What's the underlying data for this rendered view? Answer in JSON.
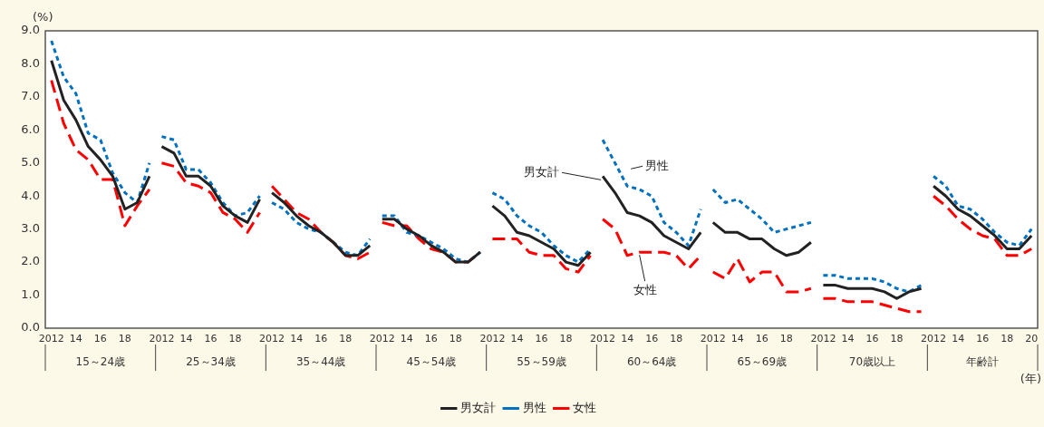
{
  "chart_data": {
    "type": "line",
    "ylabel": "(%)",
    "xlabel": "(年)",
    "categories": [
      "2012",
      null,
      "14",
      null,
      "16",
      null,
      "18",
      null,
      null,
      "2012",
      null,
      "14",
      null,
      "16",
      null,
      "18",
      null,
      null,
      "2012",
      null,
      "14",
      null,
      "16",
      null,
      "18",
      null,
      null,
      "2012",
      null,
      "14",
      null,
      "16",
      null,
      "18",
      null,
      null,
      "2012",
      null,
      "14",
      null,
      "16",
      null,
      "18",
      null,
      null,
      "2012",
      null,
      "14",
      null,
      "16",
      null,
      "18",
      null,
      null,
      "2012",
      null,
      "14",
      null,
      "16",
      null,
      "18",
      null,
      null,
      "2012",
      null,
      "14",
      null,
      "16",
      null,
      "18",
      null,
      null,
      "2012",
      null,
      "14",
      null,
      "16",
      null,
      "18",
      null,
      "20"
    ],
    "annotations": [
      "15～24歳",
      "25～34歳",
      "35～44歳",
      "45～54歳",
      "55～59歳",
      "60～64歳",
      "65～69歳",
      "70歳以上",
      "年齢計"
    ],
    "series": [
      {
        "name": "男女計",
        "color": "#222222",
        "line_style": "solid",
        "values": [
          8.1,
          6.9,
          6.3,
          5.5,
          5.1,
          4.6,
          3.6,
          3.8,
          4.6,
          5.5,
          5.3,
          4.6,
          4.6,
          4.3,
          3.7,
          3.4,
          3.2,
          3.9,
          4.1,
          3.8,
          3.4,
          3.1,
          2.9,
          2.6,
          2.2,
          2.2,
          2.5,
          3.3,
          3.3,
          3.0,
          2.8,
          2.5,
          2.3,
          2.0,
          2.0,
          2.3,
          3.7,
          3.4,
          2.9,
          2.8,
          2.6,
          2.4,
          2.0,
          1.9,
          2.3,
          4.6,
          4.1,
          3.5,
          3.4,
          3.2,
          2.8,
          2.6,
          2.4,
          2.9,
          3.2,
          2.9,
          2.9,
          2.7,
          2.7,
          2.4,
          2.2,
          2.3,
          2.6,
          1.3,
          1.3,
          1.2,
          1.2,
          1.2,
          1.1,
          0.9,
          1.1,
          1.2,
          4.3,
          4.0,
          3.6,
          3.4,
          3.1,
          2.8,
          2.4,
          2.4,
          2.8
        ]
      },
      {
        "name": "男性",
        "color": "#0070c0",
        "line_style": "dotted",
        "values": [
          8.7,
          7.6,
          7.1,
          5.9,
          5.7,
          4.7,
          4.1,
          3.8,
          5.0,
          5.8,
          5.7,
          4.8,
          4.8,
          4.4,
          3.8,
          3.4,
          3.5,
          4.0,
          3.8,
          3.6,
          3.2,
          3.0,
          2.9,
          2.6,
          2.3,
          2.2,
          2.7,
          3.4,
          3.4,
          2.9,
          2.8,
          2.6,
          2.4,
          2.1,
          2.0,
          2.3,
          4.1,
          3.9,
          3.4,
          3.1,
          2.9,
          2.5,
          2.2,
          2.0,
          2.4,
          5.7,
          5.0,
          4.3,
          4.2,
          4.0,
          3.2,
          2.9,
          2.5,
          3.6,
          4.2,
          3.8,
          3.9,
          3.6,
          3.3,
          2.9,
          3.0,
          3.1,
          3.2,
          1.6,
          1.6,
          1.5,
          1.5,
          1.5,
          1.4,
          1.2,
          1.1,
          1.3,
          4.6,
          4.3,
          3.7,
          3.6,
          3.3,
          2.9,
          2.6,
          2.5,
          3.0
        ]
      },
      {
        "name": "女性",
        "color": "#ff0000",
        "line_style": "dashed",
        "values": [
          7.5,
          6.2,
          5.4,
          5.1,
          4.5,
          4.5,
          3.1,
          3.7,
          4.2,
          5.0,
          4.9,
          4.4,
          4.3,
          4.1,
          3.5,
          3.3,
          2.9,
          3.5,
          4.3,
          3.9,
          3.5,
          3.3,
          2.9,
          2.6,
          2.2,
          2.1,
          2.3,
          3.2,
          3.1,
          3.1,
          2.7,
          2.4,
          2.3,
          2.0,
          2.0,
          2.3,
          2.7,
          2.7,
          2.7,
          2.3,
          2.2,
          2.2,
          1.8,
          1.7,
          2.2,
          3.3,
          3.0,
          2.2,
          2.3,
          2.3,
          2.3,
          2.2,
          1.8,
          2.2,
          1.7,
          1.5,
          2.1,
          1.4,
          1.7,
          1.7,
          1.1,
          1.1,
          1.2,
          0.9,
          0.9,
          0.8,
          0.8,
          0.8,
          0.7,
          0.6,
          0.5,
          0.5,
          4.0,
          3.7,
          3.3,
          3.0,
          2.8,
          2.7,
          2.2,
          2.2,
          2.4
        ]
      }
    ],
    "ylim": [
      0,
      9
    ],
    "yticks": [
      {
        "value": 0,
        "label": "0.0"
      },
      {
        "value": 1,
        "label": "1.0"
      },
      {
        "value": 2,
        "label": "2.0"
      },
      {
        "value": 3,
        "label": "3.0"
      },
      {
        "value": 4,
        "label": "4.0"
      },
      {
        "value": 5,
        "label": "5.0"
      },
      {
        "value": 6,
        "label": "6.0"
      },
      {
        "value": 7,
        "label": "7.0"
      },
      {
        "value": 8,
        "label": "8.0"
      },
      {
        "value": 9,
        "label": "9.0"
      }
    ],
    "legend": "bottom",
    "marker": "none"
  }
}
